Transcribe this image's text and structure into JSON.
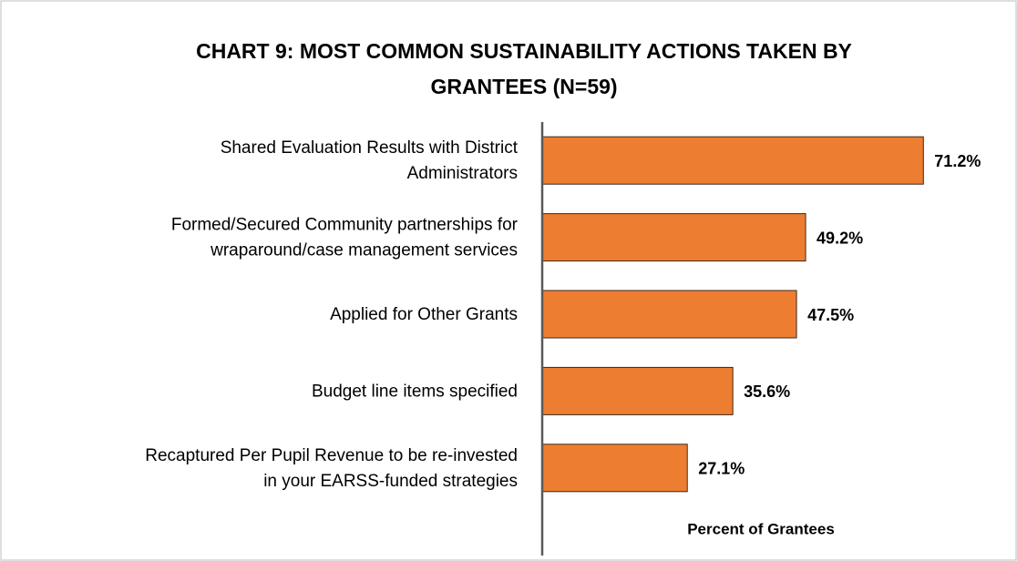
{
  "chart_data": {
    "type": "bar",
    "orientation": "horizontal",
    "title": "CHART 9: MOST COMMON SUSTAINABILITY ACTIONS TAKEN BY\nGRANTEES (N=59)",
    "x_label": "Percent of Grantees",
    "categories": [
      "Shared Evaluation Results with District\nAdministrators",
      "Formed/Secured Community partnerships for\nwraparound/case management services",
      "Applied for Other Grants",
      "Budget line items specified",
      "Recaptured Per Pupil Revenue to be re-invested\nin your EARSS-funded strategies"
    ],
    "values": [
      71.2,
      49.2,
      47.5,
      35.6,
      27.1
    ],
    "value_labels": [
      "71.2%",
      "49.2%",
      "47.5%",
      "35.6%",
      "27.1%"
    ],
    "color": "#ED7D31",
    "xlim": [
      0,
      80
    ]
  }
}
